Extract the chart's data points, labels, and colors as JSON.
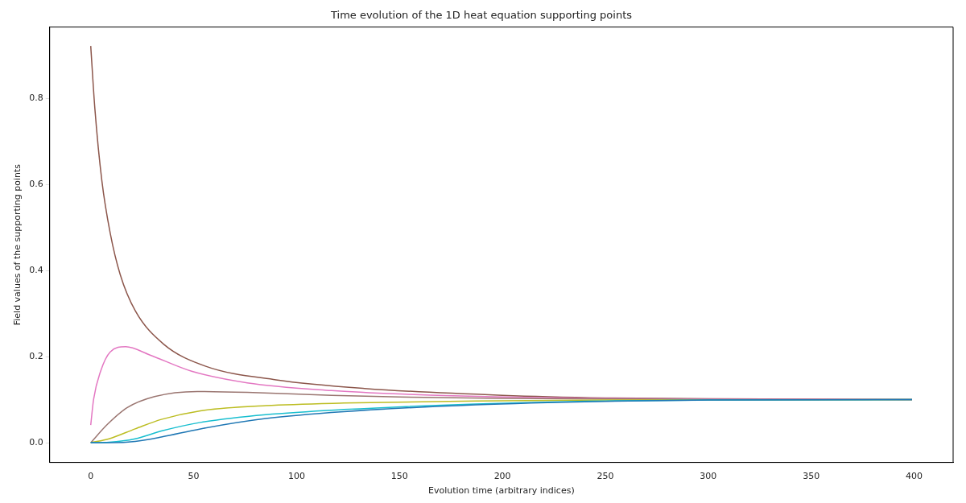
{
  "chart_data": {
    "type": "line",
    "title": "Time evolution of the 1D heat equation supporting points",
    "xlabel": "Evolution time (arbitrary indices)",
    "ylabel": "Field values of the supporting points",
    "xlim": [
      -19.95,
      418.95
    ],
    "ylim": [
      -0.046,
      0.966
    ],
    "xticks": [
      0,
      50,
      100,
      150,
      200,
      250,
      300,
      350,
      400
    ],
    "yticks": [
      {
        "value": 0,
        "label": "0.0"
      },
      {
        "value": 0.2,
        "label": "0.2"
      },
      {
        "value": 0.4,
        "label": "0.4"
      },
      {
        "value": 0.6,
        "label": "0.6"
      },
      {
        "value": 0.8,
        "label": "0.8"
      }
    ],
    "grid": false,
    "legend": false,
    "marker": "none",
    "line_style": "solid",
    "series": [
      {
        "color": "#1f77b4",
        "x": [
          0,
          10,
          21.6,
          34.3,
          53.3,
          85,
          123,
          187,
          250,
          300,
          399
        ],
        "values": [
          0,
          0,
          0.003,
          0.013,
          0.032,
          0.056,
          0.072,
          0.088,
          0.096,
          0.099,
          0.1
        ]
      },
      {
        "color": "#17becf",
        "x": [
          0,
          8.9,
          21.6,
          34.3,
          53.3,
          85,
          123,
          187,
          250,
          300,
          399
        ],
        "values": [
          0,
          0.001,
          0.009,
          0.027,
          0.047,
          0.065,
          0.077,
          0.09,
          0.097,
          0.099,
          0.1
        ]
      },
      {
        "color": "#bcbd22",
        "x": [
          0,
          8.9,
          21.6,
          34.3,
          53.3,
          85,
          123,
          187,
          250,
          399
        ],
        "values": [
          0,
          0.009,
          0.032,
          0.054,
          0.074,
          0.086,
          0.092,
          0.097,
          0.099,
          0.1
        ]
      },
      {
        "color": "#9a7570",
        "x": [
          0,
          8.2,
          17.6,
          31,
          51.7,
          76,
          117,
          150,
          200,
          300,
          399
        ],
        "values": [
          0,
          0.043,
          0.081,
          0.107,
          0.119,
          0.117,
          0.11,
          0.106,
          0.103,
          0.1,
          0.1
        ]
      },
      {
        "color": "#e377c2",
        "x": [
          0,
          1.4,
          4.8,
          9.5,
          17,
          28.6,
          49,
          76,
          117,
          150,
          200,
          250,
          300,
          399
        ],
        "values": [
          0.041,
          0.101,
          0.166,
          0.211,
          0.223,
          0.204,
          0.166,
          0.139,
          0.121,
          0.113,
          0.106,
          0.103,
          0.101,
          0.1
        ]
      },
      {
        "color": "#8c564b",
        "x": [
          0,
          2,
          5.4,
          9.5,
          14.3,
          21.7,
          35.4,
          55.6,
          90,
          133,
          200,
          250,
          300,
          399
        ],
        "values": [
          0.922,
          0.777,
          0.609,
          0.486,
          0.391,
          0.306,
          0.229,
          0.178,
          0.146,
          0.126,
          0.11,
          0.104,
          0.102,
          0.1
        ]
      }
    ]
  }
}
